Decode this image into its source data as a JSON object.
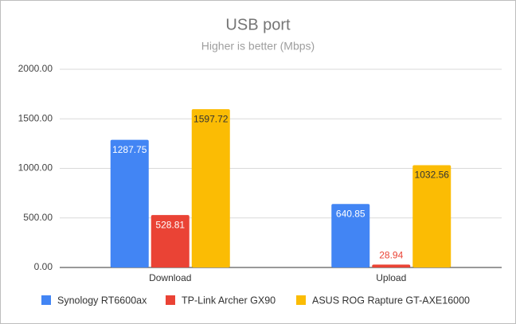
{
  "chart_data": {
    "type": "bar",
    "title": "USB port",
    "subtitle": "Higher is better (Mbps)",
    "categories": [
      "Download",
      "Upload"
    ],
    "series": [
      {
        "name": "Synology RT6600ax",
        "color": "#4285f4",
        "values": [
          1287.75,
          640.85
        ]
      },
      {
        "name": "TP-Link Archer GX90",
        "color": "#ea4335",
        "values": [
          528.81,
          28.94
        ]
      },
      {
        "name": "ASUS ROG Rapture GT-AXE16000",
        "color": "#fbbc04",
        "values": [
          1597.72,
          1032.56
        ]
      }
    ],
    "ylim": [
      0,
      2000
    ],
    "yticks": [
      {
        "value": 0,
        "label": "0.00"
      },
      {
        "value": 500,
        "label": "500.00"
      },
      {
        "value": 1000,
        "label": "1000.00"
      },
      {
        "value": 1500,
        "label": "1500.00"
      },
      {
        "value": 2000,
        "label": "2000.00"
      }
    ],
    "grid": true,
    "legend": "bottom"
  }
}
